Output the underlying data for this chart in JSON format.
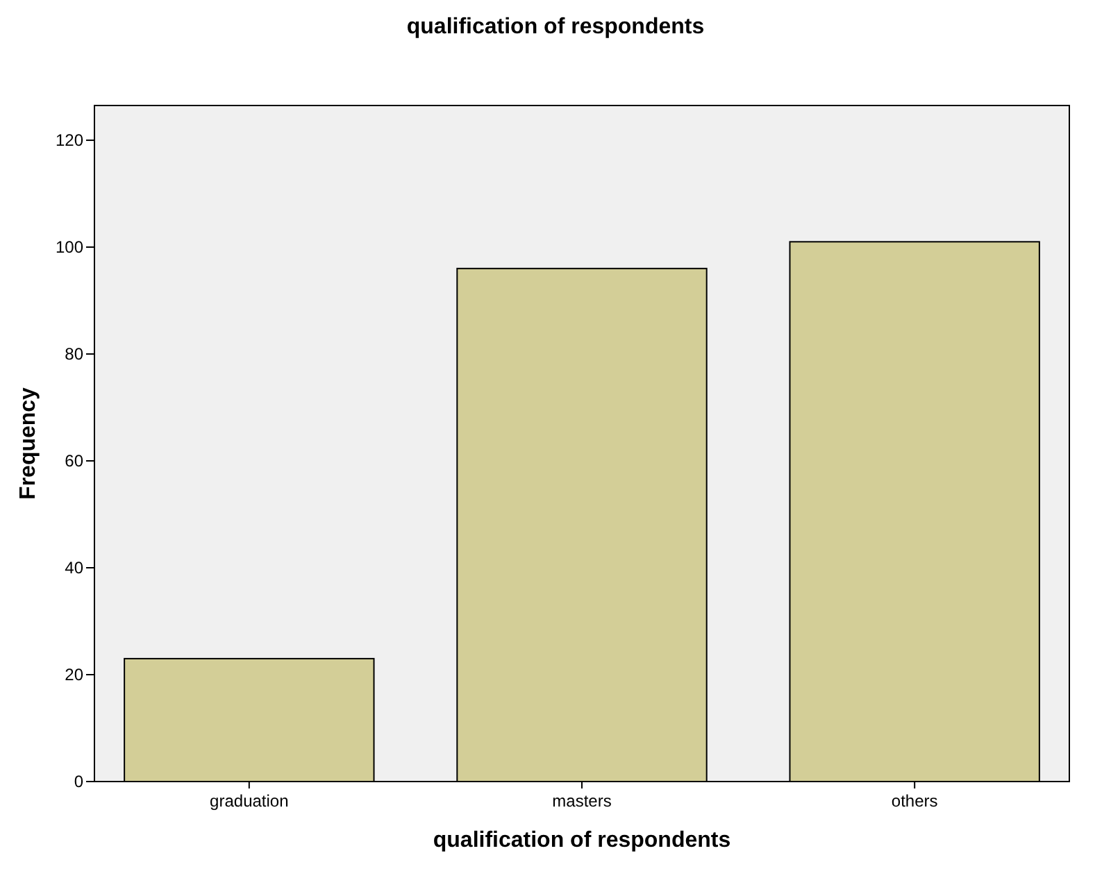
{
  "chart_data": {
    "type": "bar",
    "title": "qualification of respondents",
    "xlabel": "qualification of respondents",
    "ylabel": "Frequency",
    "categories": [
      "graduation",
      "masters",
      "others"
    ],
    "values": [
      23,
      96,
      101
    ],
    "color": "#d3ce97",
    "ylim": [
      0,
      126.5
    ],
    "yticks": [
      0,
      20,
      40,
      60,
      80,
      100,
      120
    ],
    "grid": false
  }
}
